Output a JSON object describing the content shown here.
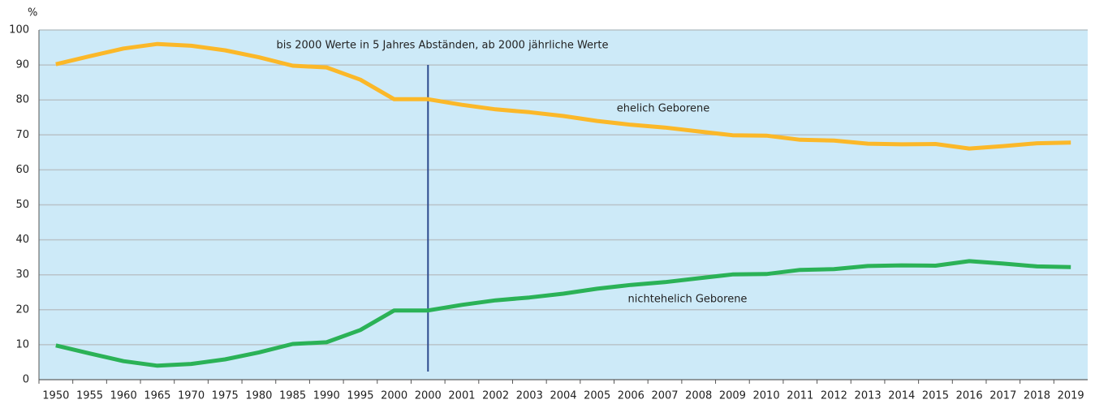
{
  "chart_data": {
    "type": "line",
    "y_label": "%",
    "categories": [
      "1950",
      "1955",
      "1960",
      "1965",
      "1970",
      "1975",
      "1980",
      "1985",
      "1990",
      "1995",
      "2000",
      "2000",
      "2001",
      "2002",
      "2003",
      "2004",
      "2005",
      "2006",
      "2007",
      "2008",
      "2009",
      "2010",
      "2011",
      "2012",
      "2013",
      "2014",
      "2015",
      "2016",
      "2017",
      "2018",
      "2019"
    ],
    "series": [
      {
        "name": "ehelich Geborene",
        "color": "#fbb829",
        "values": [
          90.2,
          92.5,
          94.7,
          96,
          95.5,
          94.2,
          92.2,
          89.8,
          89.3,
          85.8,
          80.2,
          80.2,
          78.6,
          77.3,
          76.5,
          75.4,
          74.0,
          72.9,
          72.1,
          71.0,
          69.9,
          69.8,
          68.6,
          68.4,
          67.5,
          67.3,
          67.4,
          66.1,
          66.8,
          67.6,
          67.8
        ]
      },
      {
        "name": "nichtehelich Geborene",
        "color": "#2bb257",
        "values": [
          9.8,
          7.5,
          5.3,
          4.0,
          4.5,
          5.8,
          7.8,
          10.2,
          10.7,
          14.2,
          19.8,
          19.8,
          21.4,
          22.7,
          23.5,
          24.6,
          26.0,
          27.1,
          27.9,
          29.0,
          30.1,
          30.2,
          31.4,
          31.6,
          32.5,
          32.7,
          32.6,
          33.9,
          33.2,
          32.4,
          32.2
        ]
      }
    ],
    "annotations": [
      "bis 2000 Werte in 5 Jahres Abständen, ab 2000 jährliche Werte"
    ],
    "ylim": [
      0,
      100
    ],
    "yticks": [
      0,
      10,
      20,
      30,
      40,
      50,
      60,
      70,
      80,
      90,
      100
    ],
    "grid": true
  }
}
